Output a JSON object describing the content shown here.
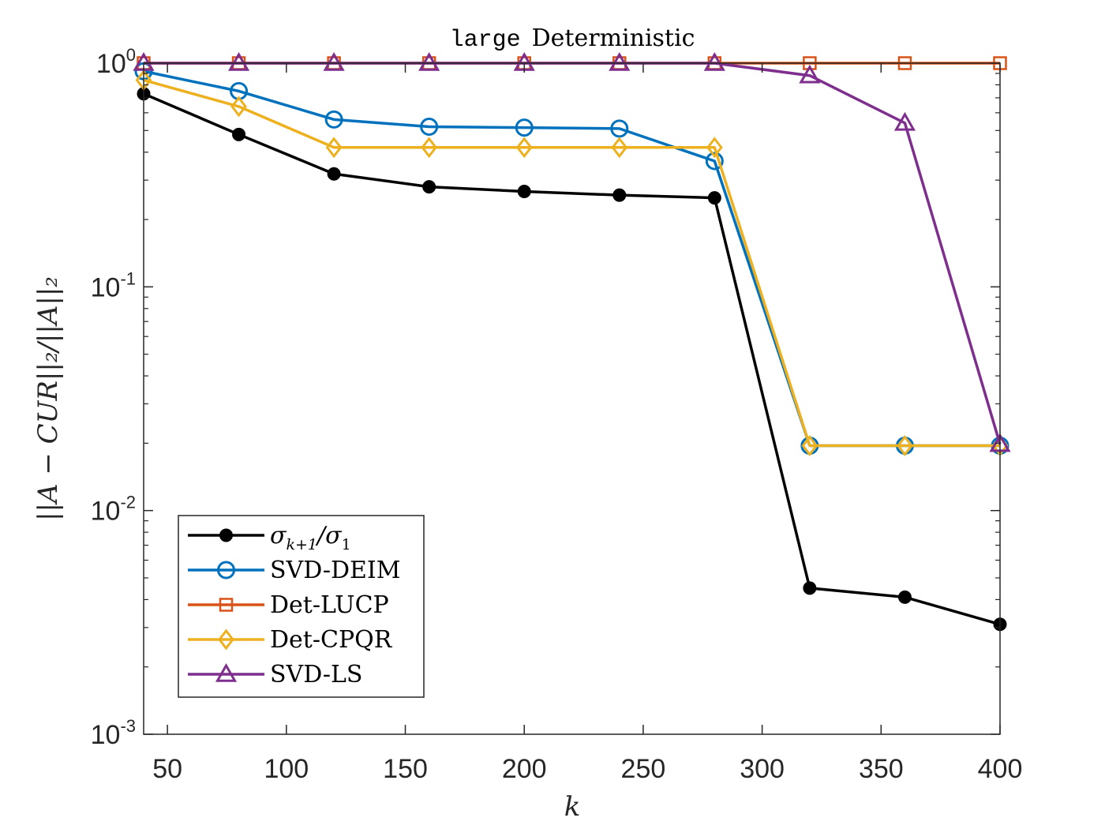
{
  "chart_data": {
    "type": "line",
    "title": {
      "mono": "large",
      "text": "Deterministic"
    },
    "xlabel": "k",
    "ylabel": "||A − CUR||₂/||A||₂",
    "xlim": [
      40,
      400
    ],
    "ylim": [
      0.001,
      1
    ],
    "yscale": "log",
    "x_ticks": [
      50,
      100,
      150,
      200,
      250,
      300,
      350,
      400
    ],
    "y_ticks": [
      {
        "base": "10",
        "exp": "0",
        "value": 1
      },
      {
        "base": "10",
        "exp": "-1",
        "value": 0.1
      },
      {
        "base": "10",
        "exp": "-2",
        "value": 0.01
      },
      {
        "base": "10",
        "exp": "-3",
        "value": 0.001
      }
    ],
    "grid": false,
    "legend_position": "bottom-left",
    "x": [
      40,
      80,
      120,
      160,
      200,
      240,
      280,
      320,
      360,
      400
    ],
    "series": [
      {
        "name": "σ_{k+1}/σ_1",
        "legend": {
          "main": "σ",
          "sub1": "k+1",
          "mid": "/σ",
          "sub2": "1"
        },
        "color": "#000000",
        "marker": "filled-circle",
        "values": [
          0.73,
          0.48,
          0.32,
          0.28,
          0.267,
          0.257,
          0.25,
          0.0045,
          0.0041,
          0.0031
        ]
      },
      {
        "name": "SVD-DEIM",
        "color": "#0072BD",
        "marker": "circle",
        "values": [
          0.92,
          0.75,
          0.56,
          0.52,
          0.515,
          0.51,
          0.365,
          0.0195,
          0.0195,
          0.0195
        ]
      },
      {
        "name": "Det-LUCP",
        "color": "#D95319",
        "marker": "square",
        "values": [
          1,
          1,
          1,
          1,
          1,
          1,
          1,
          1,
          1,
          1
        ]
      },
      {
        "name": "Det-CPQR",
        "color": "#EDB120",
        "marker": "diamond",
        "values": [
          0.84,
          0.64,
          0.42,
          0.42,
          0.42,
          0.42,
          0.42,
          0.0195,
          0.0195,
          0.0195
        ]
      },
      {
        "name": "SVD-LS",
        "color": "#7E2F8E",
        "marker": "triangle",
        "values": [
          1,
          1,
          1,
          1,
          1,
          1,
          1,
          0.88,
          0.54,
          0.0198
        ]
      }
    ]
  }
}
